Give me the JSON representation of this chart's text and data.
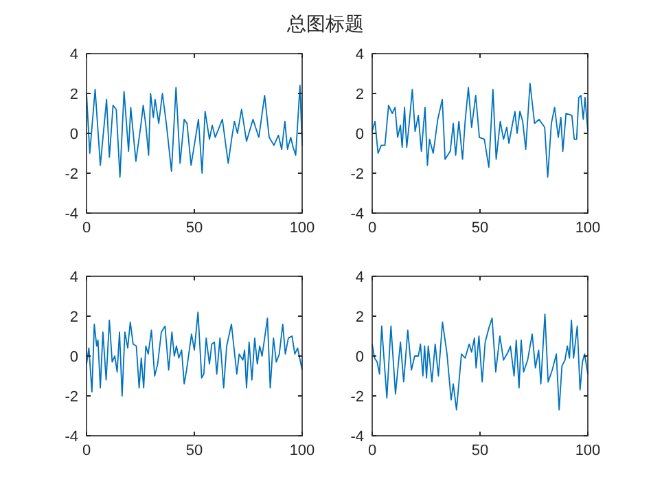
{
  "chart_data": [
    {
      "type": "line",
      "title": "总图标题",
      "xlim": [
        0,
        100
      ],
      "ylim": [
        -4,
        4
      ],
      "xticks": [
        0,
        50,
        100
      ],
      "yticks": [
        -4,
        -2,
        0,
        2,
        4
      ],
      "grid": false,
      "marker": "none",
      "line_style": "solid",
      "series": [
        {
          "color": "#0072bd",
          "x": [
            0,
            1.5,
            4,
            6.4,
            9.3,
            10.6,
            12.3,
            13.8,
            15.5,
            17.4,
            19.5,
            20.5,
            22.9,
            25.2,
            26.3,
            27.5,
            28.8,
            29.7,
            31,
            31.8,
            33.5,
            35.2,
            37.1,
            39.4,
            41.5,
            43.4,
            45.3,
            46.6,
            48.5,
            51.9,
            53.6,
            55,
            57,
            58.3,
            59.7,
            63,
            65.7,
            67.4,
            68.6,
            70,
            71.9,
            74.2,
            77.2,
            79.9,
            82.6,
            84.7,
            86.9,
            89,
            90.5,
            92,
            93.2,
            94.7,
            95.8,
            97,
            99,
            100
          ],
          "values": [
            2.0,
            -1.0,
            2.2,
            -1.6,
            1.7,
            -1.2,
            1.4,
            1.2,
            -2.2,
            2.1,
            -0.9,
            1.3,
            -1.4,
            0.4,
            1.4,
            0.4,
            -1.1,
            2.0,
            0.8,
            1.7,
            0.5,
            2.0,
            0.4,
            -1.9,
            2.3,
            -1.5,
            0.7,
            0.5,
            -1.6,
            0.7,
            -2.0,
            1.1,
            -0.3,
            0.4,
            -0.2,
            0.7,
            -1.5,
            -0.2,
            0.6,
            0,
            1.2,
            -0.4,
            0.7,
            -0.2,
            1.9,
            -0.2,
            -0.6,
            -0.1,
            -0.8,
            0.6,
            -0.8,
            -0.2,
            -0.7,
            -1.1,
            2.4,
            -0.6
          ]
        }
      ]
    },
    {
      "type": "line",
      "xlim": [
        0,
        100
      ],
      "ylim": [
        -4,
        4
      ],
      "xticks": [
        0,
        50,
        100
      ],
      "yticks": [
        -4,
        -2,
        0,
        2,
        4
      ],
      "grid": false,
      "marker": "none",
      "line_style": "solid",
      "series": [
        {
          "color": "#0072bd",
          "x": [
            0,
            1.3,
            2.7,
            4.2,
            5.9,
            7.6,
            9.3,
            10.6,
            11.8,
            13.1,
            13.9,
            15,
            16,
            16.9,
            18.6,
            19.9,
            21.4,
            22.8,
            24.5,
            25.6,
            26.6,
            28.3,
            30.4,
            32.5,
            33.8,
            36.2,
            37.6,
            38.7,
            40.2,
            41.9,
            43.1,
            44.6,
            46.1,
            48,
            49.7,
            52,
            54.1,
            56,
            57.5,
            59.4,
            60.9,
            62.4,
            63.4,
            65.1,
            66.2,
            67.2,
            68.5,
            69.8,
            71.2,
            73.2,
            75.3,
            77.4,
            80,
            81.4,
            83.1,
            84.6,
            86.3,
            87.5,
            88.4,
            89.9,
            92.6,
            93.7,
            94.8,
            95.8,
            96.8,
            97.9,
            98.7,
            100
          ],
          "values": [
            0.1,
            0.6,
            -1.0,
            -0.6,
            -0.6,
            1.4,
            1.0,
            1.3,
            -0.2,
            0.4,
            -0.7,
            1.3,
            -0.7,
            0.2,
            2.2,
            0.1,
            0.9,
            -0.9,
            1.3,
            -1.6,
            -0.3,
            -1.0,
            0.7,
            1.7,
            -1.3,
            -0.9,
            0.5,
            -1.1,
            0.6,
            -1.3,
            0.6,
            2.3,
            0.3,
            1.9,
            -0.2,
            -0.3,
            -1.7,
            2.2,
            -1.3,
            0.6,
            -0.3,
            0.3,
            -0.5,
            0.5,
            1.1,
            0,
            1.1,
            0.6,
            -0.8,
            2.5,
            0.5,
            0.7,
            0.3,
            -2.2,
            0.5,
            1.3,
            -0.2,
            0.8,
            -0.9,
            1.0,
            0.9,
            -0.3,
            -0.3,
            1.8,
            1.9,
            0.7,
            1.8,
            0.1
          ]
        }
      ]
    },
    {
      "type": "line",
      "xlim": [
        0,
        100
      ],
      "ylim": [
        -4,
        4
      ],
      "xticks": [
        0,
        50,
        100
      ],
      "yticks": [
        -4,
        -2,
        0,
        2,
        4
      ],
      "grid": false,
      "marker": "none",
      "line_style": "solid",
      "series": [
        {
          "color": "#0072bd",
          "x": [
            0,
            1.1,
            2.5,
            3.6,
            4.7,
            5.3,
            6.4,
            7.6,
            9.1,
            10.6,
            11.9,
            13.1,
            14.2,
            15.3,
            16.5,
            17.8,
            19.1,
            20.3,
            21.6,
            23.1,
            24.4,
            25.4,
            26.5,
            27.5,
            28.6,
            30.1,
            31.6,
            33,
            34.7,
            36.4,
            38.1,
            39.6,
            40.7,
            41.7,
            42.8,
            44.1,
            45.3,
            46.4,
            48.7,
            50,
            51.7,
            53.4,
            54.4,
            55.5,
            57,
            58.1,
            59.3,
            60.4,
            61.9,
            63.6,
            65,
            67.2,
            68.2,
            69.7,
            70.8,
            72.5,
            73.3,
            74.2,
            75.4,
            76.7,
            78,
            79.2,
            80.3,
            81.4,
            82.6,
            83.9,
            85.2,
            86.7,
            88,
            89.4,
            91,
            92.2,
            93.6,
            95.3,
            96.6,
            97.9,
            100
          ],
          "values": [
            -0.4,
            0.4,
            -1.8,
            1.6,
            0.5,
            0.8,
            -1.6,
            1.2,
            -1.2,
            1.8,
            -0.3,
            0,
            -0.8,
            1.2,
            -2.0,
            1.2,
            0.4,
            1.7,
            0.6,
            0.5,
            -1.6,
            -0.1,
            -1.6,
            0.5,
            0.1,
            1.3,
            -1.0,
            -0.4,
            1.2,
            1.5,
            -0.7,
            1.2,
            0,
            0.5,
            -0.1,
            0.3,
            -1.4,
            -0.7,
            1.1,
            0.3,
            2.2,
            -1.1,
            -0.9,
            0.9,
            -0.4,
            0.6,
            0.7,
            -0.9,
            0.9,
            -1.6,
            0.5,
            1.6,
            0.6,
            -0.9,
            0.1,
            -0.2,
            0.3,
            -1.6,
            0.7,
            -1.2,
            0.9,
            -0.4,
            0.5,
            0,
            0.9,
            1.9,
            -1.6,
            0.9,
            -0.3,
            0.1,
            1.6,
            0.1,
            0.9,
            1.0,
            0.1,
            0.4,
            -0.7
          ]
        }
      ]
    },
    {
      "type": "line",
      "xlim": [
        0,
        100
      ],
      "ylim": [
        -4,
        4
      ],
      "xticks": [
        0,
        50,
        100
      ],
      "yticks": [
        -4,
        -2,
        0,
        2,
        4
      ],
      "grid": false,
      "marker": "none",
      "line_style": "solid",
      "series": [
        {
          "color": "#0072bd",
          "x": [
            0,
            1.1,
            2.3,
            3.4,
            4.4,
            6.8,
            8.7,
            10.8,
            13.1,
            14.6,
            16.5,
            18.2,
            19.7,
            21.4,
            22.4,
            23.5,
            24.3,
            25.2,
            26,
            27.7,
            29.2,
            30.7,
            32.6,
            34.7,
            36.6,
            37.6,
            39.1,
            41.4,
            43.1,
            45,
            46.1,
            47.4,
            48.2,
            49.5,
            51,
            52.4,
            54.1,
            55.6,
            57.3,
            59.2,
            60.9,
            63,
            64.1,
            65.8,
            66.8,
            68.1,
            69.1,
            70.2,
            72.1,
            74.2,
            75.7,
            77.2,
            78.2,
            80.1,
            81.6,
            83.5,
            85.4,
            86.7,
            88,
            89.4,
            90.5,
            91.5,
            92.4,
            93.4,
            95.1,
            96.4,
            97.5,
            98.5,
            100
          ],
          "values": [
            0.6,
            -0.1,
            -0.3,
            -0.9,
            1.5,
            -2.1,
            1.5,
            -1.9,
            0.7,
            -1.3,
            1.3,
            -0.7,
            0,
            0,
            0.6,
            -1.0,
            0.5,
            -1.1,
            0.5,
            -1.3,
            0.6,
            -1.0,
            1.7,
            0.1,
            -2.2,
            -1.4,
            -2.7,
            0.1,
            -0.1,
            0.6,
            0.2,
            0.9,
            -0.6,
            1.0,
            -1.3,
            0.7,
            1.4,
            1.9,
            -0.8,
            1.0,
            -0.2,
            0.2,
            0.5,
            -1.0,
            0.8,
            -1.6,
            0.8,
            -0.8,
            -0.2,
            1.1,
            -0.6,
            0.3,
            -1.4,
            2.1,
            -1.3,
            -0.7,
            0.1,
            -2.7,
            -0.5,
            -0.2,
            0.5,
            -0.1,
            1.8,
            -0.1,
            1.5,
            -1.7,
            -0.3,
            0.1,
            -0.9
          ]
        }
      ]
    }
  ]
}
